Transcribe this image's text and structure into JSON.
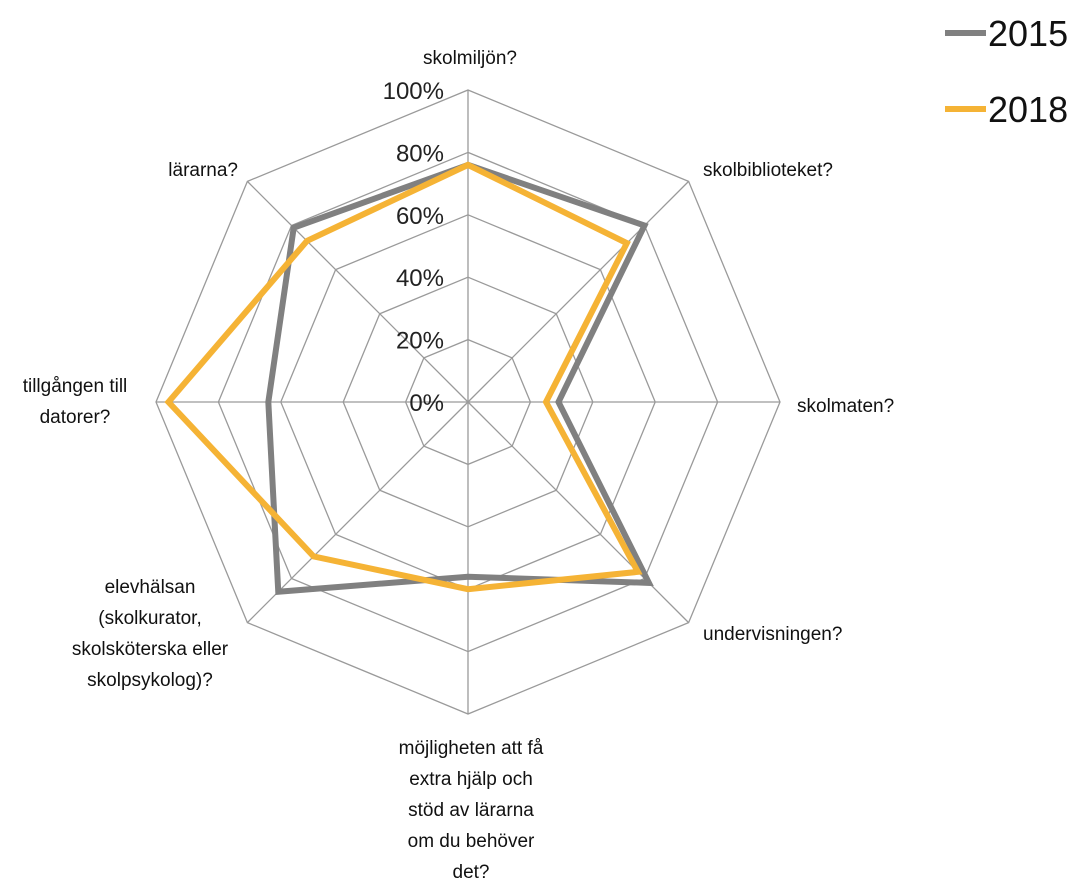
{
  "colors": {
    "grid": "#9a9a9a",
    "text": "#111111"
  },
  "chart_data": {
    "type": "radar",
    "categories": [
      [
        "skolmiljön?"
      ],
      [
        "skolbiblioteket?"
      ],
      [
        "skolmaten?"
      ],
      [
        "undervisningen?"
      ],
      [
        "möjligheten att få",
        "extra hjälp och",
        "stöd av lärarna",
        "om du behöver",
        "det?"
      ],
      [
        "elevhälsan",
        "(skolkurator,",
        "skolsköterska eller",
        "skolpsykolog)?"
      ],
      [
        "tillgången till",
        "datorer?"
      ],
      [
        "lärarna?"
      ]
    ],
    "ticks": [
      "0%",
      "20%",
      "40%",
      "60%",
      "80%",
      "100%"
    ],
    "rlim": [
      0,
      100
    ],
    "grid": true,
    "legend_position": "top-right",
    "series": [
      {
        "name": "2015",
        "color": "#808080",
        "values": [
          76,
          80,
          29,
          82,
          56,
          86,
          64,
          79
        ]
      },
      {
        "name": "2018",
        "color": "#F5B335",
        "values": [
          76,
          72,
          25,
          77,
          60,
          70,
          96,
          73
        ]
      }
    ]
  }
}
